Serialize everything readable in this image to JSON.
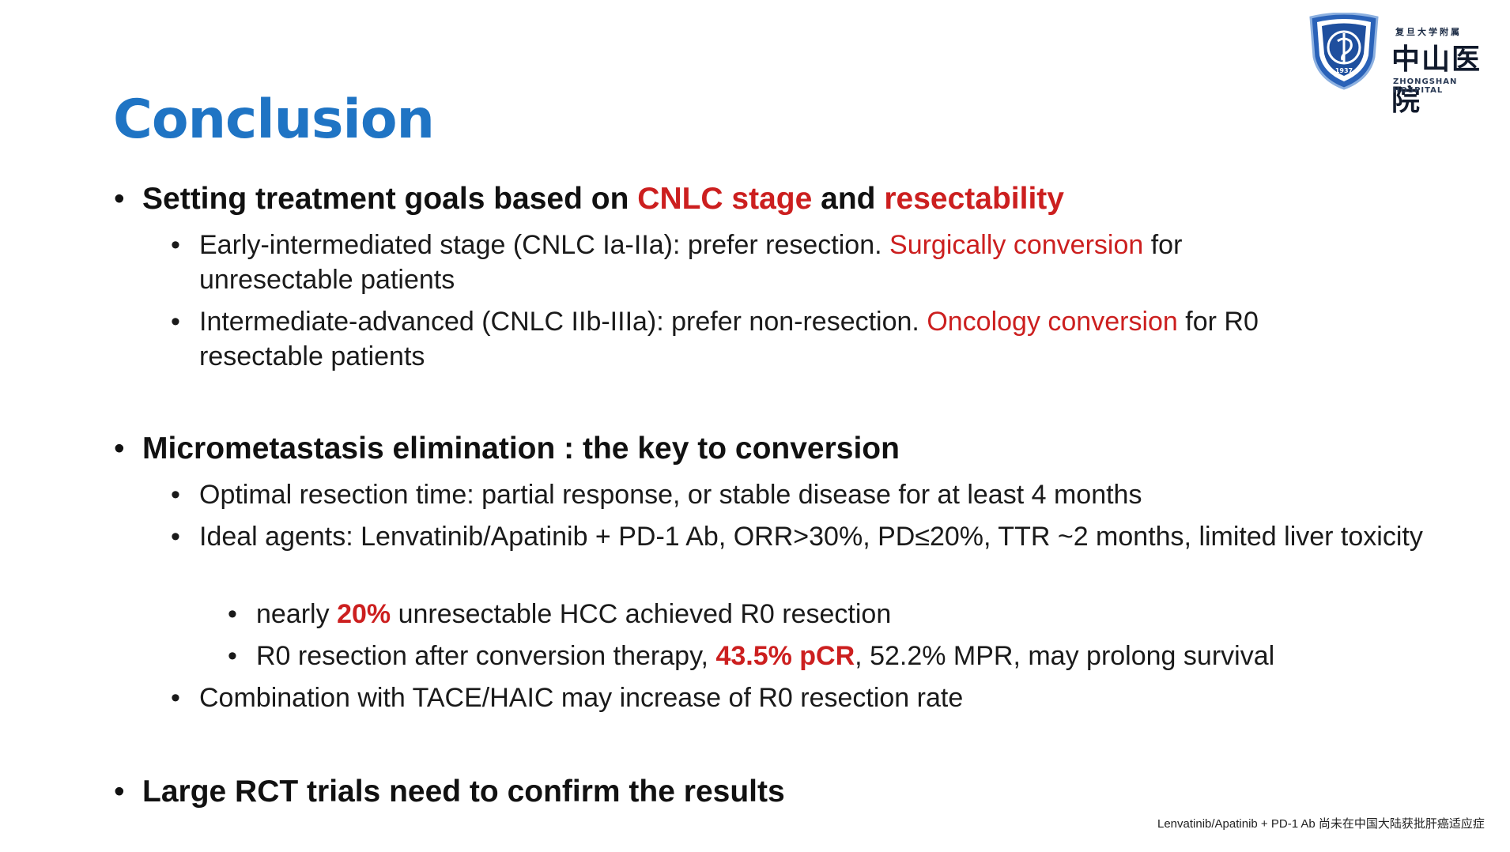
{
  "title": "Conclusion",
  "logo": {
    "cn_small": "复旦大学附属",
    "cn_big": "中山医院",
    "en": "ZHONGSHAN HOSPITAL",
    "year": "1937"
  },
  "bullets": {
    "b1": {
      "bullet": "•",
      "t1": "Setting treatment goals based on ",
      "t2": "CNLC stage",
      "t3": " and ",
      "t4": "resectability"
    },
    "b1a": {
      "bullet": "•",
      "t1": "Early-intermediated stage (CNLC Ia-IIa): prefer resection. ",
      "t2": "Surgically conversion",
      "t3": " for unresectable patients"
    },
    "b1b": {
      "bullet": "•",
      "t1": "Intermediate-advanced (CNLC IIb-IIIa): prefer non-resection. ",
      "t2": "Oncology conversion",
      "t3": " for R0 resectable patients"
    },
    "b2": {
      "bullet": "•",
      "t1": "Micrometastasis elimination : the key to conversion"
    },
    "b2a": {
      "bullet": "•",
      "t1": "Optimal resection time: partial response, or stable disease for at least 4 months"
    },
    "b2b": {
      "bullet": "•",
      "t1": "Ideal agents: Lenvatinib/Apatinib + PD-1 Ab, ORR>30%, PD≤20%, TTR ~2 months, limited liver toxicity"
    },
    "b2b1": {
      "bullet": "•",
      "t1": "nearly ",
      "t2": "20%",
      "t3": " unresectable HCC achieved R0 resection"
    },
    "b2b2": {
      "bullet": "•",
      "t1": "R0 resection after conversion therapy, ",
      "t2": "43.5% pCR",
      "t3": ", 52.2% MPR, may prolong survival"
    },
    "b2c": {
      "bullet": "•",
      "t1": "Combination with TACE/HAIC may increase of  R0 resection rate"
    },
    "b3": {
      "bullet": "•",
      "t1": "Large RCT trials need to confirm the results"
    }
  },
  "footnote": "Lenvatinib/Apatinib + PD-1 Ab 尚未在中国大陆获批肝癌适应症",
  "colors": {
    "title": "#1f74c4",
    "highlight": "#cc1f1f"
  }
}
